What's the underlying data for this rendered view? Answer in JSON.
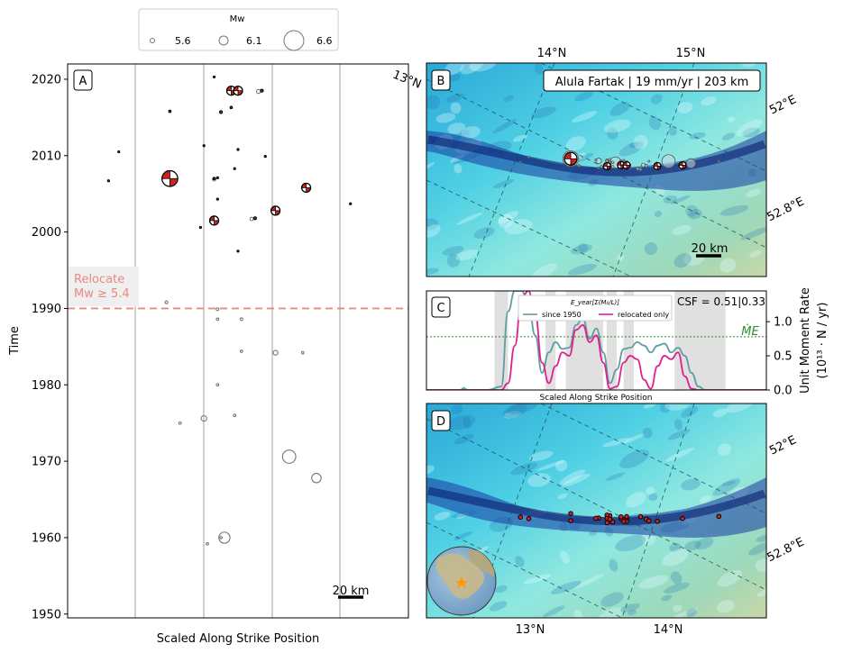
{
  "legend": {
    "title": "Mw",
    "entries": [
      "5.6",
      "6.1",
      "6.6"
    ]
  },
  "panelA": {
    "label": "A",
    "xlabel": "Scaled Along Strike Position",
    "ylabel": "Time",
    "relocate_text": [
      "Relocate",
      "Mw ≥ 5.4"
    ],
    "scalebar": "20 km"
  },
  "panelB": {
    "label": "B",
    "title": "Alula Fartak | 19 mm/yr | 203 km",
    "top_ticks": [
      "14°N",
      "15°N"
    ],
    "left_tick": "13°N",
    "right_ticks": [
      "52°E",
      "52.8°E"
    ],
    "scalebar": "20 km"
  },
  "panelC": {
    "label": "C",
    "legend_title": "E_year[Σ(M₀/L)]",
    "legend_entries": [
      "since 1950",
      "relocated only"
    ],
    "csf": "CSF = 0.51|0.33",
    "xlabel": "Scaled Along Strike Position",
    "ylabel_line1": "Unit Moment Rate",
    "ylabel_line2": "(10¹³ · N / yr)",
    "me_label": "ṀE",
    "yticks": [
      "0.0",
      "0.5",
      "1.0"
    ]
  },
  "panelD": {
    "label": "D",
    "bottom_ticks": [
      "13°N",
      "14°N"
    ],
    "right_ticks": [
      "52°E",
      "52.8°E"
    ]
  },
  "colors": {
    "relocate": "#e88a80",
    "since1950": "#5f9ea0",
    "relocated": "#e0208f",
    "me": "#2e8b2e",
    "beachball": "#cc2222"
  },
  "chart_data": [
    {
      "type": "scatter",
      "panel": "A",
      "xlabel": "Scaled Along Strike Position",
      "ylabel": "Time",
      "ylim": [
        1949.5,
        2022
      ],
      "yticks": [
        1950,
        1960,
        1970,
        1980,
        1990,
        2000,
        2010,
        2020
      ],
      "relocate_year": 1990,
      "relocated_events": [
        {
          "x": 0.3,
          "y": 2007,
          "mw": 6.6,
          "mech": true
        },
        {
          "x": 0.7,
          "y": 2005.8,
          "mw": 6.1,
          "mech": true
        },
        {
          "x": 0.61,
          "y": 2002.8,
          "mw": 5.8,
          "mech": true
        },
        {
          "x": 0.43,
          "y": 2001.5,
          "mw": 5.8,
          "mech": true
        },
        {
          "x": 0.48,
          "y": 2018.5,
          "mw": 5.9,
          "mech": true
        },
        {
          "x": 0.5,
          "y": 2018.5,
          "mw": 5.9,
          "mech": true
        },
        {
          "x": 0.55,
          "y": 2001.8,
          "mw": 5.6
        },
        {
          "x": 0.57,
          "y": 2018.5,
          "mw": 5.6
        },
        {
          "x": 0.3,
          "y": 2015.8,
          "mw": 5.5
        },
        {
          "x": 0.45,
          "y": 2015.7,
          "mw": 5.6
        },
        {
          "x": 0.48,
          "y": 2016.3,
          "mw": 5.5
        },
        {
          "x": 0.4,
          "y": 2011.3,
          "mw": 5.4
        },
        {
          "x": 0.44,
          "y": 2007.1,
          "mw": 5.4
        },
        {
          "x": 0.43,
          "y": 2007.0,
          "mw": 5.5
        },
        {
          "x": 0.5,
          "y": 1997.5,
          "mw": 5.4
        },
        {
          "x": 0.39,
          "y": 2000.6,
          "mw": 5.4
        },
        {
          "x": 0.49,
          "y": 2008.3,
          "mw": 5.4
        },
        {
          "x": 0.83,
          "y": 2003.7,
          "mw": 5.4
        },
        {
          "x": 0.12,
          "y": 2006.7,
          "mw": 5.4
        },
        {
          "x": 0.15,
          "y": 2010.5,
          "mw": 5.4
        },
        {
          "x": 0.58,
          "y": 2009.9,
          "mw": 5.4
        },
        {
          "x": 0.5,
          "y": 2010.8,
          "mw": 5.4
        },
        {
          "x": 0.43,
          "y": 2020.3,
          "mw": 5.4
        },
        {
          "x": 0.44,
          "y": 2004.3,
          "mw": 5.4
        }
      ],
      "catalog_events": [
        {
          "x": 0.46,
          "y": 1960.0,
          "mw": 6.4
        },
        {
          "x": 0.65,
          "y": 1970.6,
          "mw": 6.5
        },
        {
          "x": 0.73,
          "y": 1967.8,
          "mw": 6.3
        },
        {
          "x": 0.4,
          "y": 1975.6,
          "mw": 6.0
        },
        {
          "x": 0.61,
          "y": 1984.2,
          "mw": 5.9
        },
        {
          "x": 0.56,
          "y": 2018.4,
          "mw": 5.8
        },
        {
          "x": 0.43,
          "y": 2006.9,
          "mw": 5.7
        },
        {
          "x": 0.54,
          "y": 2001.7,
          "mw": 5.7
        },
        {
          "x": 0.29,
          "y": 1990.8,
          "mw": 5.6
        },
        {
          "x": 0.44,
          "y": 1989.9,
          "mw": 5.6
        },
        {
          "x": 0.51,
          "y": 1988.6,
          "mw": 5.6
        },
        {
          "x": 0.44,
          "y": 1988.6,
          "mw": 5.5
        },
        {
          "x": 0.51,
          "y": 1984.4,
          "mw": 5.5
        },
        {
          "x": 0.69,
          "y": 1984.2,
          "mw": 5.5
        },
        {
          "x": 0.44,
          "y": 1980.0,
          "mw": 5.5
        },
        {
          "x": 0.49,
          "y": 1976.0,
          "mw": 5.5
        },
        {
          "x": 0.33,
          "y": 1975.0,
          "mw": 5.5
        },
        {
          "x": 0.41,
          "y": 1959.2,
          "mw": 5.5
        },
        {
          "x": 0.45,
          "y": 1960.0,
          "mw": 5.5
        }
      ]
    },
    {
      "type": "line",
      "panel": "C",
      "xlabel": "Scaled Along Strike Position",
      "ylabel": "Unit Moment Rate (10^13 · N / yr)",
      "ylim": [
        0,
        1.45
      ],
      "yticks": [
        0.0,
        0.5,
        1.0
      ],
      "me_level": 0.78,
      "shaded_spans": [
        [
          0.2,
          0.24
        ],
        [
          0.35,
          0.38
        ],
        [
          0.41,
          0.52
        ],
        [
          0.53,
          0.56
        ],
        [
          0.58,
          0.61
        ],
        [
          0.73,
          0.88
        ]
      ],
      "x": [
        0.0,
        0.1,
        0.11,
        0.12,
        0.18,
        0.22,
        0.24,
        0.26,
        0.28,
        0.3,
        0.32,
        0.34,
        0.36,
        0.38,
        0.4,
        0.42,
        0.44,
        0.46,
        0.48,
        0.5,
        0.52,
        0.54,
        0.56,
        0.58,
        0.6,
        0.62,
        0.64,
        0.66,
        0.68,
        0.7,
        0.72,
        0.74,
        0.76,
        0.78,
        0.8,
        0.82,
        1.0
      ],
      "series": [
        {
          "name": "since 1950",
          "values": [
            0,
            0,
            0.03,
            0,
            0,
            0.05,
            1.15,
            1.45,
            1.45,
            1.25,
            0.8,
            0.25,
            0.55,
            0.7,
            0.6,
            0.62,
            0.95,
            1.05,
            0.75,
            0.9,
            0.55,
            0.1,
            0.3,
            0.6,
            0.62,
            0.7,
            0.65,
            0.55,
            0.65,
            0.68,
            0.55,
            0.62,
            0.5,
            0.25,
            0.05,
            0,
            0
          ]
        },
        {
          "name": "relocated only",
          "values": [
            0,
            0,
            0,
            0,
            0,
            0,
            0.1,
            0.65,
            1.35,
            1.45,
            1.1,
            0.4,
            0.1,
            0.35,
            0.55,
            0.5,
            0.88,
            0.95,
            0.7,
            0.8,
            0.4,
            0.02,
            0.05,
            0.4,
            0.5,
            0.45,
            0.15,
            0.02,
            0.35,
            0.5,
            0.45,
            0.55,
            0.2,
            0.02,
            0,
            0,
            0
          ]
        }
      ]
    }
  ]
}
